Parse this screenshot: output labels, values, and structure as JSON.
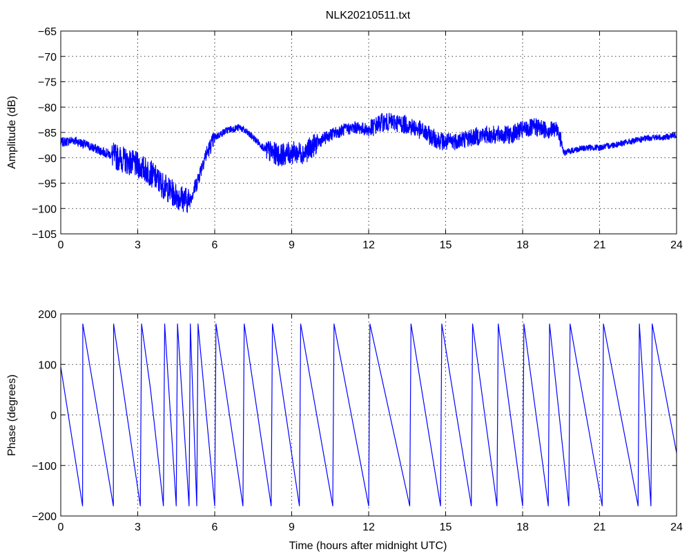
{
  "chart_data": [
    {
      "type": "line",
      "title": "NLK20210511.txt",
      "xlabel": "",
      "ylabel": "Amplitude (dB)",
      "xlim": [
        0,
        24
      ],
      "ylim": [
        -105,
        -65
      ],
      "xticks": [
        0,
        3,
        6,
        9,
        12,
        15,
        18,
        21,
        24
      ],
      "yticks": [
        -105,
        -100,
        -95,
        -90,
        -85,
        -80,
        -75,
        -70,
        -65
      ],
      "grid": true,
      "line_color": "#0000ff",
      "series": [
        {
          "x": [
            0,
            0.5,
            1,
            1.5,
            2,
            2.5,
            3,
            3.5,
            4,
            4.5,
            5,
            5.3,
            5.6,
            6,
            6.5,
            7,
            7.5,
            8,
            8.5,
            9,
            9.5,
            10,
            10.5,
            11,
            11.5,
            12,
            12.5,
            13,
            13.5,
            14,
            14.5,
            15,
            15.5,
            16,
            16.5,
            17,
            17.5,
            18,
            18.5,
            19,
            19.4,
            19.6,
            20,
            20.5,
            21,
            21.5,
            22,
            22.5,
            23,
            23.5,
            24
          ],
          "values": [
            -87,
            -86.5,
            -87.5,
            -88.5,
            -89.5,
            -90.5,
            -91.5,
            -93,
            -95.5,
            -97.5,
            -98.5,
            -95,
            -90,
            -86,
            -84.5,
            -84,
            -86,
            -88.5,
            -89.5,
            -89,
            -89,
            -87,
            -85.5,
            -84.5,
            -84,
            -84.5,
            -83,
            -83,
            -83.5,
            -84.5,
            -86,
            -87,
            -86.5,
            -86,
            -85.5,
            -85.5,
            -85.5,
            -84.5,
            -84,
            -84.5,
            -84.5,
            -89,
            -88.5,
            -88,
            -88,
            -87.5,
            -87,
            -86.5,
            -86,
            -86,
            -85.5
          ]
        }
      ]
    },
    {
      "type": "line",
      "title": "",
      "xlabel": "Time (hours after midnight UTC)",
      "ylabel": "Phase (degrees)",
      "xlim": [
        0,
        24
      ],
      "ylim": [
        -200,
        200
      ],
      "xticks": [
        0,
        3,
        6,
        9,
        12,
        15,
        18,
        21,
        24
      ],
      "yticks": [
        -200,
        -100,
        0,
        100,
        200
      ],
      "grid": true,
      "line_color": "#0000ff",
      "series": [
        {
          "x": [
            0,
            0.85,
            0.86,
            2.05,
            2.06,
            3.1,
            3.15,
            3.5,
            4.0,
            4.05,
            4.5,
            4.55,
            5.0,
            5.05,
            5.3,
            5.35,
            6.0,
            6.05,
            7.1,
            7.15,
            8.2,
            8.25,
            9.3,
            9.35,
            10.6,
            10.65,
            12.0,
            12.05,
            13.6,
            13.65,
            14.8,
            14.85,
            16.0,
            16.05,
            17.0,
            17.05,
            18.0,
            18.05,
            19.0,
            19.05,
            19.8,
            19.85,
            21.1,
            21.15,
            22.5,
            22.55,
            23.0,
            23.05,
            24.0
          ],
          "values": [
            95,
            -180,
            180,
            -180,
            180,
            -180,
            180,
            50,
            -180,
            180,
            -180,
            180,
            -180,
            180,
            -180,
            180,
            -180,
            180,
            -180,
            180,
            -180,
            180,
            -180,
            180,
            -180,
            180,
            -180,
            180,
            -180,
            180,
            -180,
            180,
            -180,
            180,
            -180,
            180,
            -180,
            180,
            -180,
            180,
            -180,
            180,
            -180,
            180,
            -180,
            180,
            -180,
            180,
            -75
          ]
        }
      ]
    }
  ]
}
